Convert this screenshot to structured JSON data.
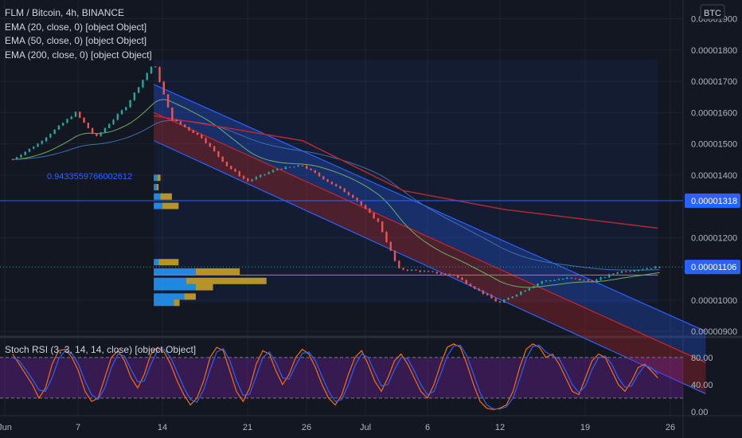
{
  "legend": {
    "title": "FLM / Bitcoin, 4h, BINANCE",
    "ema20": "EMA (20, close, 0) [object Object]",
    "ema50": "EMA (50, close, 0) [object Object]",
    "ema200": "EMA (200, close, 0) [object Object]",
    "rsi": "Stoch RSI (3, 3, 14, 14, close) [object Object]"
  },
  "annotation_text": "0.9433559766002612",
  "currency_label": "BTC",
  "colors": {
    "background": "#131722",
    "grid": "#1f2330",
    "up": "#26a69a",
    "down": "#ef5350",
    "ema20": "#6fae5f",
    "ema50": "#3d6fb0",
    "ema200": "#b22833",
    "channel_blue": "#2962ff",
    "channel_red": "#c62828",
    "hline": "#2962ff",
    "price_badge": "#2962ff",
    "volume_up": "#2196f3",
    "volume_down": "#c9a227",
    "rsi_k": "#2962ff",
    "rsi_d": "#ff6d00",
    "rsi_band": "#7b1fa2"
  },
  "chart_data": [
    {
      "type": "candlestick",
      "title": "FLM / Bitcoin, 4h, BINANCE",
      "x_tick_labels": [
        "Jun",
        "7",
        "14",
        "21",
        "26",
        "Jul",
        "6",
        "12",
        "19",
        "26"
      ],
      "y_tick_labels": [
        "0.00001900",
        "0.00001800",
        "0.00001700",
        "0.00001600",
        "0.00001500",
        "0.00001400",
        "0.00001200",
        "0.00001000",
        "0.00000900"
      ],
      "ylim": [
        8.9e-06,
        1.96e-05
      ],
      "price_badges": [
        {
          "value": "0.00001318",
          "price": 1.318e-05
        },
        {
          "value": "0.00001106",
          "price": 1.106e-05
        }
      ],
      "horizontal_line": 1.318e-05,
      "current_price": 1.106e-05,
      "x_day_range": [
        -0.5,
        26.6
      ],
      "candles_start_day": 0,
      "candles_end_day": 5.6,
      "candles_per_day": 6,
      "key_points": [
        [
          0,
          1.45e-05
        ],
        [
          1,
          1.5e-05
        ],
        [
          2.5,
          1.6e-05
        ],
        [
          3.3,
          1.52e-05
        ],
        [
          4.5,
          1.62e-05
        ],
        [
          5.6,
          1.76e-05
        ],
        [
          6.3,
          1.58e-05
        ],
        [
          7.5,
          1.52e-05
        ],
        [
          8.5,
          1.43e-05
        ],
        [
          9.3,
          1.38e-05
        ],
        [
          10.5,
          1.42e-05
        ],
        [
          11.5,
          1.43e-05
        ],
        [
          12.3,
          1.39e-05
        ],
        [
          13.5,
          1.33e-05
        ],
        [
          14.5,
          1.25e-05
        ],
        [
          15.3,
          1.1e-05
        ],
        [
          16.5,
          1.09e-05
        ],
        [
          17.5,
          1.08e-05
        ],
        [
          18.5,
          1.03e-05
        ],
        [
          19.3,
          9.9e-06
        ],
        [
          20,
          1.02e-05
        ],
        [
          21,
          1.06e-05
        ],
        [
          22,
          1.07e-05
        ],
        [
          23,
          1.06e-05
        ],
        [
          24,
          1.09e-05
        ],
        [
          25,
          1.1e-05
        ],
        [
          25.6,
          1.106e-05
        ]
      ],
      "ema200_points": [
        [
          5.6,
          1.59e-05
        ],
        [
          11.5,
          1.51e-05
        ],
        [
          15.5,
          1.35e-05
        ],
        [
          19.5,
          1.29e-05
        ],
        [
          25.6,
          1.23e-05
        ]
      ],
      "channel": {
        "upper_start": [
          5.6,
          1.69e-05
        ],
        "upper_end": [
          27.5,
          9e-06
        ],
        "mid_start": [
          5.6,
          1.6e-05
        ],
        "mid_end": [
          27.5,
          8e-06
        ],
        "lower_start": [
          5.6,
          1.51e-05
        ],
        "lower_end": [
          27.5,
          7e-06
        ]
      },
      "volume_profile": {
        "start_day": 5.6,
        "end_day": 25.6,
        "price_top": 1.77e-05,
        "price_bottom": 9.9e-06,
        "poc": 1.08e-05,
        "rows": [
          {
            "price": 1.39e-05,
            "up": 0.4,
            "down": 0.3
          },
          {
            "price": 1.36e-05,
            "up": 0.3,
            "down": 0.2
          },
          {
            "price": 1.33e-05,
            "up": 0.7,
            "down": 1.2
          },
          {
            "price": 1.3e-05,
            "up": 0.9,
            "down": 1.7
          },
          {
            "price": 1.12e-05,
            "up": 0.5,
            "down": 2.1
          },
          {
            "price": 1.09e-05,
            "up": 4.4,
            "down": 4.6
          },
          {
            "price": 1.06e-05,
            "up": 3.4,
            "down": 8.4
          },
          {
            "price": 1.04e-05,
            "up": 4.4,
            "down": 1.8
          },
          {
            "price": 1.01e-05,
            "up": 3.2,
            "down": 1.2
          },
          {
            "price": 9.9e-06,
            "up": 2.1,
            "down": 0.6
          }
        ]
      }
    },
    {
      "type": "line",
      "title": "Stoch RSI (3, 3, 14, 14, close) [object Object]",
      "y_tick_labels": [
        "80.00",
        "40.00",
        "0.00"
      ],
      "ylim": [
        -6,
        108
      ],
      "band": [
        20,
        80
      ],
      "series": [
        {
          "values": [
            85,
            70,
            55,
            40,
            20,
            35,
            70,
            90,
            92,
            80,
            60,
            30,
            15,
            20,
            50,
            80,
            90,
            75,
            50,
            35,
            55,
            85,
            95,
            88,
            70,
            45,
            25,
            10,
            20,
            45,
            80,
            95,
            90,
            60,
            30,
            15,
            35,
            70,
            90,
            85,
            60,
            40,
            55,
            80,
            92,
            85,
            65,
            40,
            20,
            10,
            25,
            55,
            80,
            90,
            70,
            45,
            30,
            50,
            75,
            85,
            70,
            50,
            30,
            20,
            40,
            70,
            95,
            100,
            95,
            70,
            40,
            15,
            5,
            3,
            5,
            10,
            30,
            65,
            92,
            100,
            95,
            80,
            85,
            70,
            50,
            30,
            25,
            50,
            75,
            85,
            80,
            60,
            40,
            30,
            45,
            65,
            70,
            60,
            50
          ]
        },
        {
          "values": [
            80,
            75,
            62,
            48,
            32,
            30,
            50,
            78,
            90,
            86,
            70,
            45,
            25,
            18,
            35,
            65,
            85,
            82,
            62,
            44,
            45,
            70,
            90,
            92,
            80,
            58,
            36,
            18,
            14,
            32,
            62,
            88,
            93,
            75,
            46,
            24,
            26,
            52,
            80,
            88,
            72,
            50,
            48,
            68,
            86,
            88,
            75,
            52,
            30,
            15,
            18,
            40,
            68,
            85,
            80,
            58,
            38,
            40,
            62,
            80,
            78,
            60,
            40,
            25,
            30,
            55,
            82,
            97,
            98,
            82,
            55,
            28,
            10,
            4,
            4,
            7,
            20,
            48,
            78,
            96,
            98,
            88,
            82,
            78,
            60,
            40,
            28,
            38,
            62,
            80,
            82,
            70,
            50,
            36,
            38,
            55,
            68,
            65,
            55
          ]
        }
      ]
    }
  ]
}
